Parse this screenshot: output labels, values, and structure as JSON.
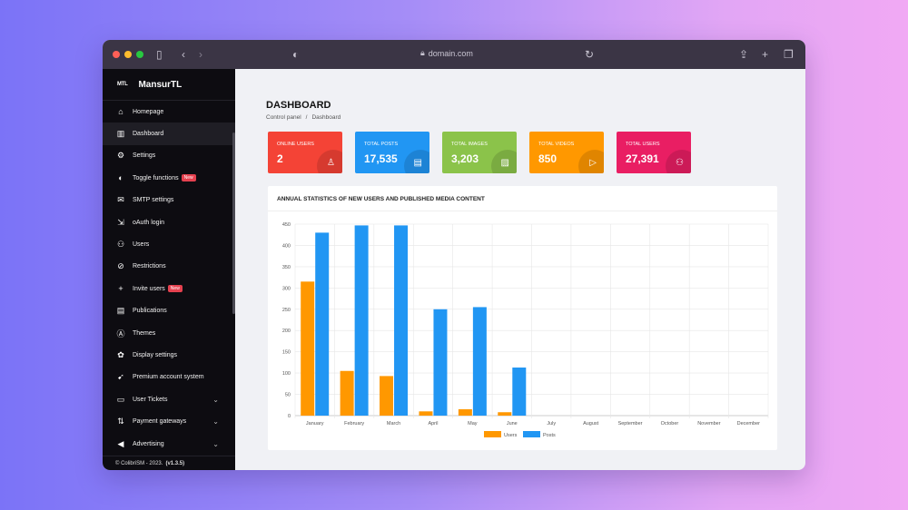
{
  "browser": {
    "url": "domain.com"
  },
  "sidebar": {
    "brand_logo": "MTL",
    "brand_name": "MansurTL",
    "items": [
      {
        "label": "Homepage",
        "icon": "home-icon",
        "glyph": "⌂"
      },
      {
        "label": "Dashboard",
        "icon": "bar-chart-icon",
        "glyph": "▥"
      },
      {
        "label": "Settings",
        "icon": "gear-icon",
        "glyph": "⚙"
      },
      {
        "label": "Toggle functions",
        "icon": "toggle-icon",
        "glyph": "◐",
        "badge": "New"
      },
      {
        "label": "SMTP settings",
        "icon": "mail-icon",
        "glyph": "✉"
      },
      {
        "label": "oAuth login",
        "icon": "login-icon",
        "glyph": "⇲"
      },
      {
        "label": "Users",
        "icon": "users-icon",
        "glyph": "⚇"
      },
      {
        "label": "Restrictions",
        "icon": "restriction-icon",
        "glyph": "⊘"
      },
      {
        "label": "Invite users",
        "icon": "invite-icon",
        "glyph": "+",
        "badge": "New"
      },
      {
        "label": "Publications",
        "icon": "publication-icon",
        "glyph": "▤"
      },
      {
        "label": "Themes",
        "icon": "theme-icon",
        "glyph": "Ⓐ"
      },
      {
        "label": "Display settings",
        "icon": "display-icon",
        "glyph": "✿"
      },
      {
        "label": "Premium account system",
        "icon": "rocket-icon",
        "glyph": "➹"
      },
      {
        "label": "User Tickets",
        "icon": "ticket-icon",
        "glyph": "▭"
      },
      {
        "label": "Payment gateways",
        "icon": "transfer-icon",
        "glyph": "⇅"
      },
      {
        "label": "Advertising",
        "icon": "megaphone-icon",
        "glyph": "◀"
      }
    ],
    "footer_text": "© ColibriSM - 2023.",
    "footer_version": "(v1.3.5)"
  },
  "main": {
    "title": "DASHBOARD",
    "breadcrumb": [
      "Control panel",
      "/",
      "Dashboard"
    ]
  },
  "cards": [
    {
      "label": "ONLINE USERS",
      "value": "2",
      "color": "#f44336",
      "icon": "user-icon",
      "glyph": "♙"
    },
    {
      "label": "TOTAL POSTS",
      "value": "17,535",
      "color": "#2196f3",
      "icon": "card-icon",
      "glyph": "▤"
    },
    {
      "label": "TOTAL IMAGES",
      "value": "3,203",
      "color": "#8bc34a",
      "icon": "image-icon",
      "glyph": "▨"
    },
    {
      "label": "TOTAL VIDEOS",
      "value": "850",
      "color": "#ff9800",
      "icon": "play-icon",
      "glyph": "▷"
    },
    {
      "label": "TOTAL USERS",
      "value": "27,391",
      "color": "#e91e63",
      "icon": "group-icon",
      "glyph": "⚇"
    }
  ],
  "chart_data": {
    "type": "bar",
    "title": "ANNUAL STATISTICS OF NEW USERS AND PUBLISHED MEDIA CONTENT",
    "categories": [
      "January",
      "February",
      "March",
      "April",
      "May",
      "June",
      "July",
      "August",
      "September",
      "October",
      "November",
      "December"
    ],
    "series": [
      {
        "name": "Users",
        "color": "#ff9800",
        "values": [
          315,
          105,
          93,
          10,
          15,
          8,
          0,
          0,
          0,
          0,
          0,
          0
        ]
      },
      {
        "name": "Posts",
        "color": "#2196f3",
        "values": [
          430,
          447,
          447,
          250,
          255,
          113,
          0,
          0,
          0,
          0,
          0,
          0
        ]
      }
    ],
    "yticks": [
      0,
      50,
      100,
      150,
      200,
      250,
      300,
      350,
      400,
      450
    ],
    "ylim": [
      0,
      450
    ],
    "grid": true,
    "legend": "bottom"
  }
}
